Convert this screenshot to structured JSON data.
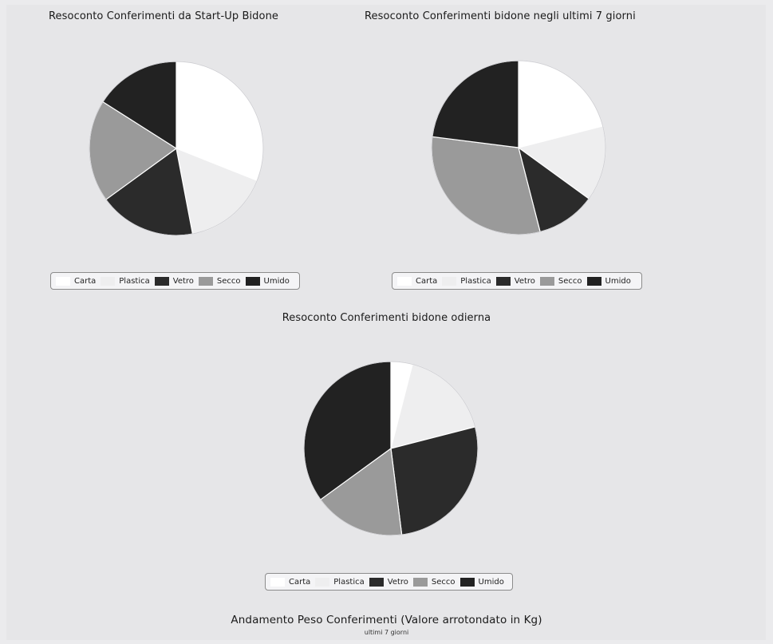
{
  "legend": [
    "Carta",
    "Plastica",
    "Vetro",
    "Secco",
    "Umido"
  ],
  "colors": {
    "Carta": "#ffffff",
    "Plastica": "#eeeeef",
    "Vetro": "#2b2b2b",
    "Secco": "#9a9a9a",
    "Umido": "#222222"
  },
  "chart_data": [
    {
      "type": "pie",
      "title": "Resoconto Conferimenti da Start-Up Bidone",
      "categories": [
        "Carta",
        "Plastica",
        "Vetro",
        "Secco",
        "Umido"
      ],
      "values": [
        31,
        16,
        18,
        19,
        16
      ]
    },
    {
      "type": "pie",
      "title": "Resoconto Conferimenti bidone negli ultimi 7 giorni",
      "categories": [
        "Carta",
        "Plastica",
        "Vetro",
        "Secco",
        "Umido"
      ],
      "values": [
        21,
        14,
        11,
        31,
        23
      ]
    },
    {
      "type": "pie",
      "title": "Resoconto Conferimenti bidone odierna",
      "categories": [
        "Carta",
        "Plastica",
        "Vetro",
        "Secco",
        "Umido"
      ],
      "values": [
        4,
        17,
        27,
        17,
        35
      ]
    }
  ],
  "footer": {
    "title": "Andamento Peso Conferimenti (Valore arrotondato in Kg)",
    "subtitle": "ultimi 7 giorni"
  }
}
